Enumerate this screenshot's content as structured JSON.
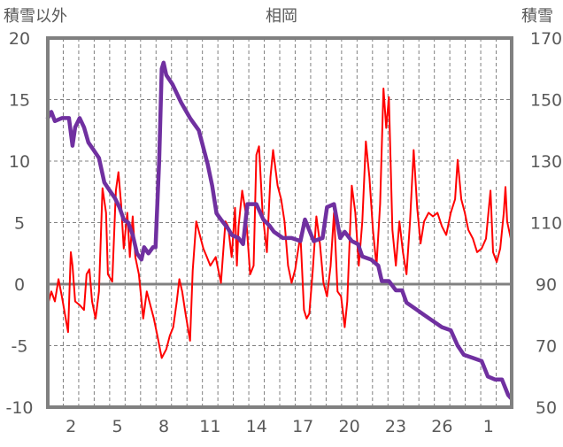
{
  "chart_data": {
    "type": "line",
    "title": "相岡",
    "ylabel_left": "積雪以外",
    "ylabel_right": "積雪",
    "ylim_left": [
      -10,
      20
    ],
    "ylim_right": [
      50,
      170
    ],
    "yticks_left": [
      "20",
      "15",
      "10",
      "5",
      "0",
      "-5",
      "-10"
    ],
    "yticks_left_values": [
      20,
      15,
      10,
      5,
      0,
      -5,
      -10
    ],
    "yticks_right": [
      "170",
      "150",
      "130",
      "110",
      "90",
      "70",
      "50"
    ],
    "yticks_right_values": [
      170,
      150,
      130,
      110,
      90,
      70,
      50
    ],
    "xlim_days": [
      0,
      30
    ],
    "xticks": [
      {
        "label": "2",
        "t": 1.5
      },
      {
        "label": "5",
        "t": 4.5
      },
      {
        "label": "8",
        "t": 7.5
      },
      {
        "label": "11",
        "t": 10.5
      },
      {
        "label": "14",
        "t": 13.5
      },
      {
        "label": "17",
        "t": 16.5
      },
      {
        "label": "20",
        "t": 19.5
      },
      {
        "label": "23",
        "t": 22.5
      },
      {
        "label": "26",
        "t": 25.5
      },
      {
        "label": "1",
        "t": 28.5
      }
    ],
    "grid": true,
    "series": [
      {
        "name": "積雪以外",
        "axis": "left",
        "color": "#ff0000",
        "points": [
          [
            0,
            -1.7
          ],
          [
            0.23,
            -0.6
          ],
          [
            0.46,
            -1.4
          ],
          [
            0.69,
            0.4
          ],
          [
            0.91,
            -1.0
          ],
          [
            1.31,
            -3.9
          ],
          [
            1.49,
            2.6
          ],
          [
            1.6,
            1.5
          ],
          [
            1.77,
            -1.4
          ],
          [
            2.06,
            -1.7
          ],
          [
            2.34,
            -2.1
          ],
          [
            2.51,
            0.8
          ],
          [
            2.69,
            1.2
          ],
          [
            2.86,
            -1.4
          ],
          [
            3.09,
            -2.8
          ],
          [
            3.31,
            -0.6
          ],
          [
            3.54,
            7.8
          ],
          [
            3.77,
            5.8
          ],
          [
            3.89,
            0.8
          ],
          [
            4.17,
            0.2
          ],
          [
            4.4,
            7.6
          ],
          [
            4.57,
            9.1
          ],
          [
            4.74,
            6.5
          ],
          [
            4.91,
            2.9
          ],
          [
            5.14,
            5.8
          ],
          [
            5.31,
            2.2
          ],
          [
            5.49,
            5.5
          ],
          [
            5.66,
            2.2
          ],
          [
            5.89,
            0.8
          ],
          [
            6.17,
            -2.8
          ],
          [
            6.4,
            -0.6
          ],
          [
            6.63,
            -1.7
          ],
          [
            6.86,
            -2.8
          ],
          [
            7.09,
            -4.2
          ],
          [
            7.37,
            -6.0
          ],
          [
            7.66,
            -5.3
          ],
          [
            7.89,
            -4.2
          ],
          [
            8.11,
            -3.5
          ],
          [
            8.34,
            -1.4
          ],
          [
            8.51,
            0.4
          ],
          [
            8.69,
            -0.6
          ],
          [
            8.91,
            -2.4
          ],
          [
            9.2,
            -4.6
          ],
          [
            9.37,
            1.1
          ],
          [
            9.6,
            5.1
          ],
          [
            9.83,
            4.0
          ],
          [
            10.06,
            2.9
          ],
          [
            10.29,
            2.2
          ],
          [
            10.51,
            1.5
          ],
          [
            10.86,
            2.2
          ],
          [
            11.2,
            0.1
          ],
          [
            11.49,
            5.1
          ],
          [
            11.66,
            4.7
          ],
          [
            11.89,
            2.2
          ],
          [
            12.11,
            6.2
          ],
          [
            12.23,
            1.5
          ],
          [
            12.34,
            4.7
          ],
          [
            12.57,
            7.6
          ],
          [
            12.8,
            5.8
          ],
          [
            13.09,
            0.8
          ],
          [
            13.31,
            1.5
          ],
          [
            13.49,
            10.5
          ],
          [
            13.66,
            11.2
          ],
          [
            13.89,
            5.8
          ],
          [
            14.17,
            2.6
          ],
          [
            14.4,
            8.7
          ],
          [
            14.57,
            10.9
          ],
          [
            14.86,
            8.0
          ],
          [
            15.09,
            6.9
          ],
          [
            15.31,
            5.1
          ],
          [
            15.54,
            1.5
          ],
          [
            15.77,
            0.1
          ],
          [
            16,
            1.2
          ],
          [
            16.17,
            2.6
          ],
          [
            16.34,
            4.0
          ],
          [
            16.57,
            -2.1
          ],
          [
            16.74,
            -2.8
          ],
          [
            16.91,
            -2.4
          ],
          [
            17.14,
            1.2
          ],
          [
            17.37,
            5.5
          ],
          [
            17.6,
            3.3
          ],
          [
            17.83,
            0.1
          ],
          [
            18.06,
            -1.0
          ],
          [
            18.29,
            1.5
          ],
          [
            18.51,
            5.8
          ],
          [
            18.74,
            -0.6
          ],
          [
            18.97,
            -1.0
          ],
          [
            19.2,
            -3.5
          ],
          [
            19.37,
            -1.4
          ],
          [
            19.66,
            8.0
          ],
          [
            19.89,
            5.8
          ],
          [
            20.11,
            1.5
          ],
          [
            20.34,
            5.1
          ],
          [
            20.57,
            11.6
          ],
          [
            20.8,
            8.7
          ],
          [
            21.03,
            4.4
          ],
          [
            21.26,
            1.5
          ],
          [
            21.49,
            6.5
          ],
          [
            21.71,
            15.9
          ],
          [
            21.89,
            12.7
          ],
          [
            22.06,
            15.2
          ],
          [
            22.29,
            4.4
          ],
          [
            22.51,
            1.5
          ],
          [
            22.74,
            5.1
          ],
          [
            22.97,
            2.6
          ],
          [
            23.2,
            0.8
          ],
          [
            23.43,
            5.1
          ],
          [
            23.66,
            10.9
          ],
          [
            23.89,
            6.2
          ],
          [
            24.11,
            3.3
          ],
          [
            24.34,
            5.1
          ],
          [
            24.63,
            5.8
          ],
          [
            24.91,
            5.5
          ],
          [
            25.2,
            5.8
          ],
          [
            25.49,
            4.7
          ],
          [
            25.77,
            4.0
          ],
          [
            26.06,
            5.8
          ],
          [
            26.34,
            6.9
          ],
          [
            26.51,
            10.1
          ],
          [
            26.74,
            6.9
          ],
          [
            26.97,
            5.8
          ],
          [
            27.2,
            4.4
          ],
          [
            27.49,
            3.7
          ],
          [
            27.77,
            2.6
          ],
          [
            28.06,
            2.9
          ],
          [
            28.34,
            3.7
          ],
          [
            28.63,
            7.6
          ],
          [
            28.8,
            2.6
          ],
          [
            29.03,
            1.8
          ],
          [
            29.26,
            2.9
          ],
          [
            29.49,
            5.8
          ],
          [
            29.6,
            7.9
          ],
          [
            29.71,
            5.1
          ],
          [
            29.94,
            3.7
          ]
        ]
      },
      {
        "name": "積雪",
        "axis": "right",
        "color": "#7030a0",
        "points": [
          [
            0,
            144
          ],
          [
            0.23,
            146
          ],
          [
            0.46,
            143
          ],
          [
            0.91,
            144
          ],
          [
            1.37,
            144
          ],
          [
            1.6,
            135
          ],
          [
            1.77,
            141
          ],
          [
            2.06,
            144
          ],
          [
            2.34,
            141
          ],
          [
            2.63,
            136
          ],
          [
            2.91,
            134
          ],
          [
            3.31,
            131
          ],
          [
            3.66,
            123
          ],
          [
            4.06,
            120
          ],
          [
            4.34,
            118
          ],
          [
            4.63,
            115
          ],
          [
            4.91,
            111
          ],
          [
            5.2,
            110
          ],
          [
            5.49,
            106
          ],
          [
            5.77,
            100
          ],
          [
            6.06,
            98
          ],
          [
            6.23,
            102
          ],
          [
            6.51,
            100
          ],
          [
            6.8,
            102
          ],
          [
            6.97,
            102
          ],
          [
            7.2,
            130
          ],
          [
            7.37,
            160
          ],
          [
            7.49,
            162
          ],
          [
            7.66,
            158
          ],
          [
            8.06,
            155
          ],
          [
            8.63,
            149
          ],
          [
            9.2,
            144
          ],
          [
            9.77,
            140
          ],
          [
            10.34,
            129
          ],
          [
            10.63,
            122
          ],
          [
            10.91,
            113
          ],
          [
            11.2,
            111
          ],
          [
            11.66,
            108
          ],
          [
            11.89,
            106
          ],
          [
            12.34,
            105
          ],
          [
            12.63,
            103
          ],
          [
            12.91,
            116
          ],
          [
            13.49,
            116
          ],
          [
            13.94,
            111
          ],
          [
            14.34,
            109
          ],
          [
            14.63,
            107
          ],
          [
            15.2,
            105
          ],
          [
            15.77,
            105
          ],
          [
            16.34,
            104
          ],
          [
            16.63,
            111
          ],
          [
            17.2,
            104
          ],
          [
            17.77,
            105
          ],
          [
            18.06,
            115
          ],
          [
            18.51,
            116
          ],
          [
            18.91,
            105
          ],
          [
            19.2,
            107
          ],
          [
            19.66,
            104
          ],
          [
            20.06,
            103
          ],
          [
            20.34,
            99
          ],
          [
            20.91,
            98
          ],
          [
            21.37,
            96
          ],
          [
            21.6,
            91
          ],
          [
            22.06,
            91
          ],
          [
            22.51,
            88
          ],
          [
            22.91,
            88
          ],
          [
            23.2,
            84
          ],
          [
            23.77,
            82
          ],
          [
            24.34,
            80
          ],
          [
            24.91,
            78
          ],
          [
            25.49,
            76
          ],
          [
            26.06,
            75
          ],
          [
            26.51,
            70
          ],
          [
            26.91,
            67
          ],
          [
            27.49,
            66
          ],
          [
            28.06,
            65
          ],
          [
            28.46,
            60
          ],
          [
            28.91,
            59
          ],
          [
            29.37,
            59
          ],
          [
            29.77,
            54
          ],
          [
            29.94,
            53
          ]
        ]
      }
    ]
  }
}
